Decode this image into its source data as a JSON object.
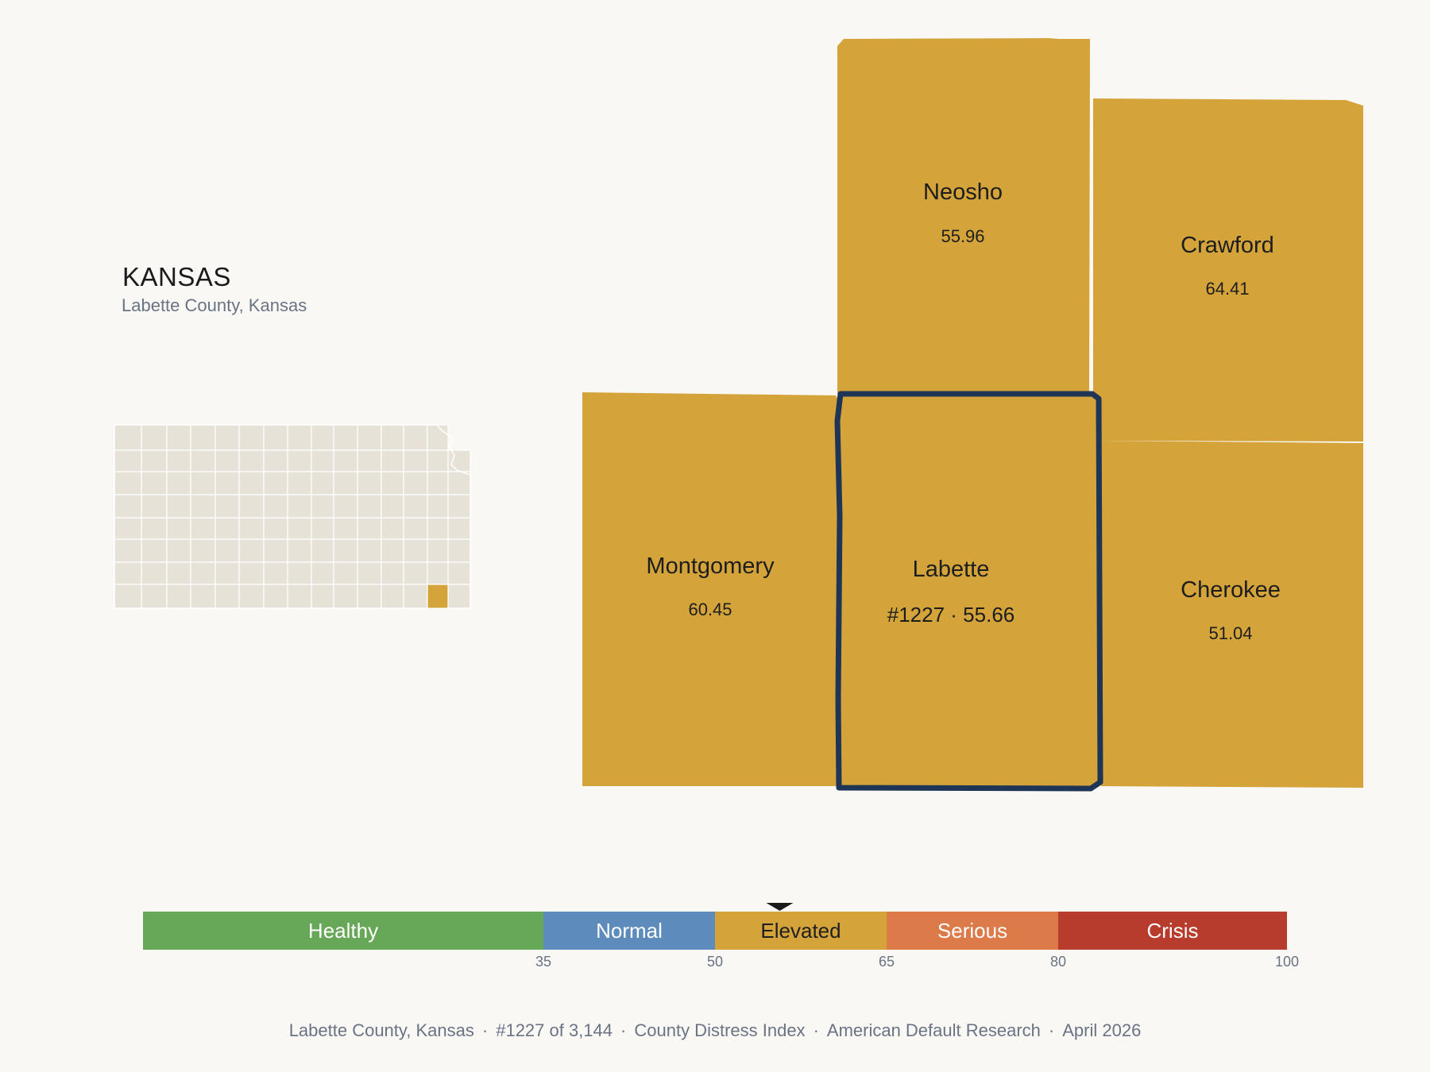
{
  "header": {
    "state": "KANSAS",
    "subtitle": "Labette County, Kansas"
  },
  "colors": {
    "background": "#f9f8f5",
    "county_fill": "#d4a43b",
    "focus_outline": "#1e3556",
    "inset_fill": "#e7e2d8",
    "inset_highlight": "#d4a43b"
  },
  "counties": {
    "neosho": {
      "name": "Neosho",
      "value": "55.96"
    },
    "crawford": {
      "name": "Crawford",
      "value": "64.41"
    },
    "montgomery": {
      "name": "Montgomery",
      "value": "60.45"
    },
    "labette": {
      "name": "Labette",
      "value": "#1227 · 55.66"
    },
    "cherokee": {
      "name": "Cherokee",
      "value": "51.04"
    }
  },
  "scale": {
    "marker_value": 55.66,
    "min": 0,
    "max": 100,
    "segments": [
      {
        "label": "Healthy",
        "from": 0,
        "to": 35,
        "color": "#67a758",
        "text_color": "#ffffff"
      },
      {
        "label": "Normal",
        "from": 35,
        "to": 50,
        "color": "#5d8bbb",
        "text_color": "#ffffff"
      },
      {
        "label": "Elevated",
        "from": 50,
        "to": 65,
        "color": "#d4a43b",
        "text_color": "#1f1f1f"
      },
      {
        "label": "Serious",
        "from": 65,
        "to": 80,
        "color": "#dc7a4a",
        "text_color": "#ffffff"
      },
      {
        "label": "Crisis",
        "from": 80,
        "to": 100,
        "color": "#b83c2d",
        "text_color": "#ffffff"
      }
    ],
    "ticks": [
      "35",
      "50",
      "65",
      "80",
      "100"
    ]
  },
  "footer": {
    "county": "Labette County, Kansas",
    "rank": "#1227 of 3,144",
    "index": "County Distress Index",
    "source": "American Default Research",
    "date": "April 2026",
    "separator": "·"
  }
}
